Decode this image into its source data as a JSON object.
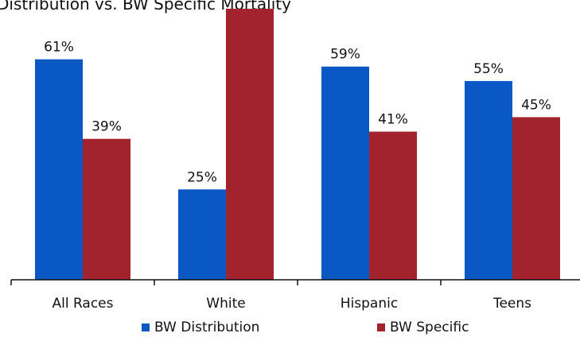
{
  "chart_data": {
    "type": "bar",
    "title": "Distribution vs. BW Specific Mortality",
    "categories": [
      "All Races",
      "White",
      "Hispanic",
      "Teens"
    ],
    "series": [
      {
        "name": "BW Distribution",
        "color": "#0a58c4",
        "values": [
          61,
          25,
          59,
          55
        ],
        "labels": [
          "61%",
          "25%",
          "59%",
          "55%"
        ]
      },
      {
        "name": "BW Specific",
        "color": "#a3232c",
        "values": [
          39,
          75,
          41,
          45
        ],
        "labels": [
          "39%",
          "",
          "41%",
          "45%"
        ]
      }
    ],
    "ylim": [
      0,
      80
    ],
    "grid": false,
    "legend_position": "bottom"
  }
}
